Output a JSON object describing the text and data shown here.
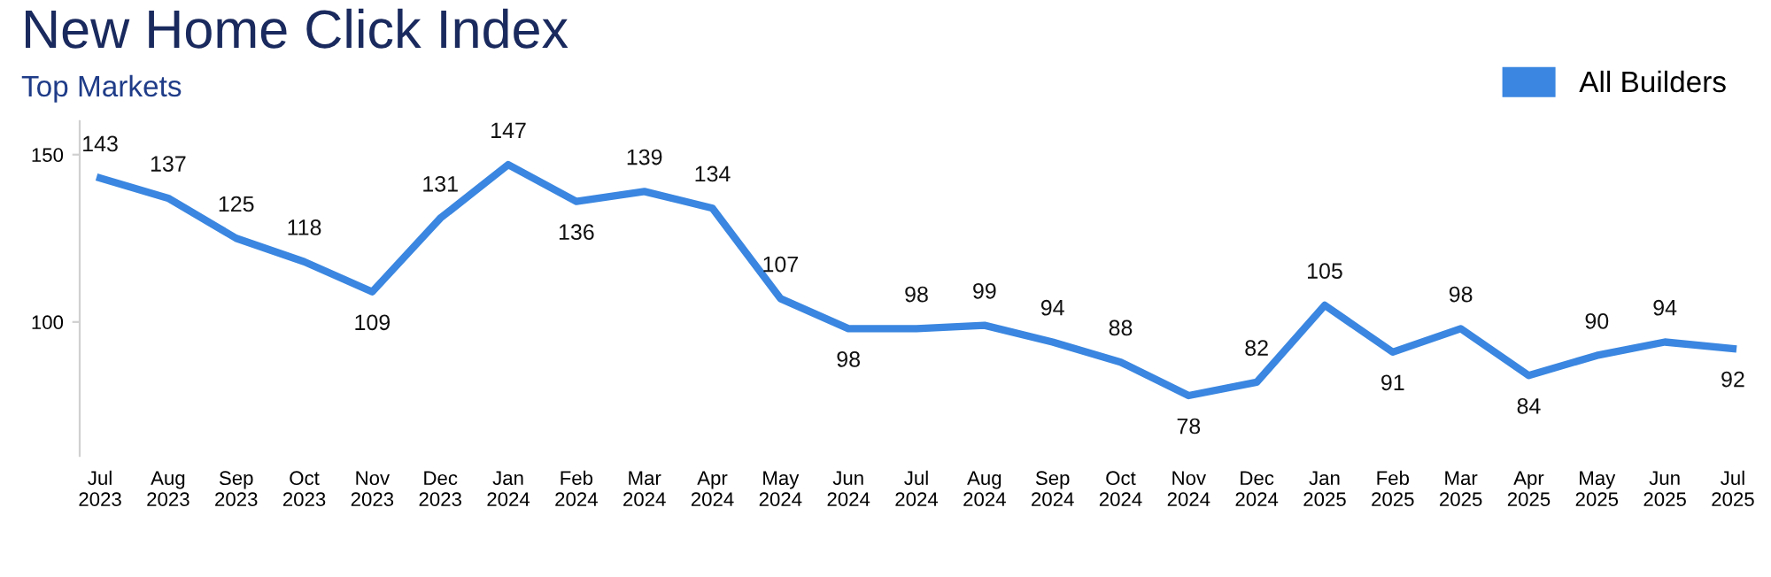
{
  "chart_data": {
    "type": "line",
    "title": "New Home Click Index",
    "subtitle": "Top Markets",
    "categories": [
      "Jul\n2023",
      "Aug\n2023",
      "Sep\n2023",
      "Oct\n2023",
      "Nov\n2023",
      "Dec\n2023",
      "Jan\n2024",
      "Feb\n2024",
      "Mar\n2024",
      "Apr\n2024",
      "May\n2024",
      "Jun\n2024",
      "Jul\n2024",
      "Aug\n2024",
      "Sep\n2024",
      "Oct\n2024",
      "Nov\n2024",
      "Dec\n2024",
      "Jan\n2025",
      "Feb\n2025",
      "Mar\n2025",
      "Apr\n2025",
      "May\n2025",
      "Jun\n2025",
      "Jul\n2025"
    ],
    "series": [
      {
        "name": "All Builders",
        "color": "#3a86e0",
        "values": [
          143,
          137,
          125,
          118,
          109,
          131,
          147,
          136,
          139,
          134,
          107,
          98,
          98,
          99,
          94,
          88,
          78,
          82,
          105,
          91,
          98,
          84,
          90,
          94,
          92
        ]
      }
    ],
    "ylim": [
      60,
      160
    ],
    "yticks": [
      100,
      150
    ],
    "grid": false,
    "legend": "top right",
    "data_labels": true,
    "marker": "none",
    "line_style": "solid"
  }
}
